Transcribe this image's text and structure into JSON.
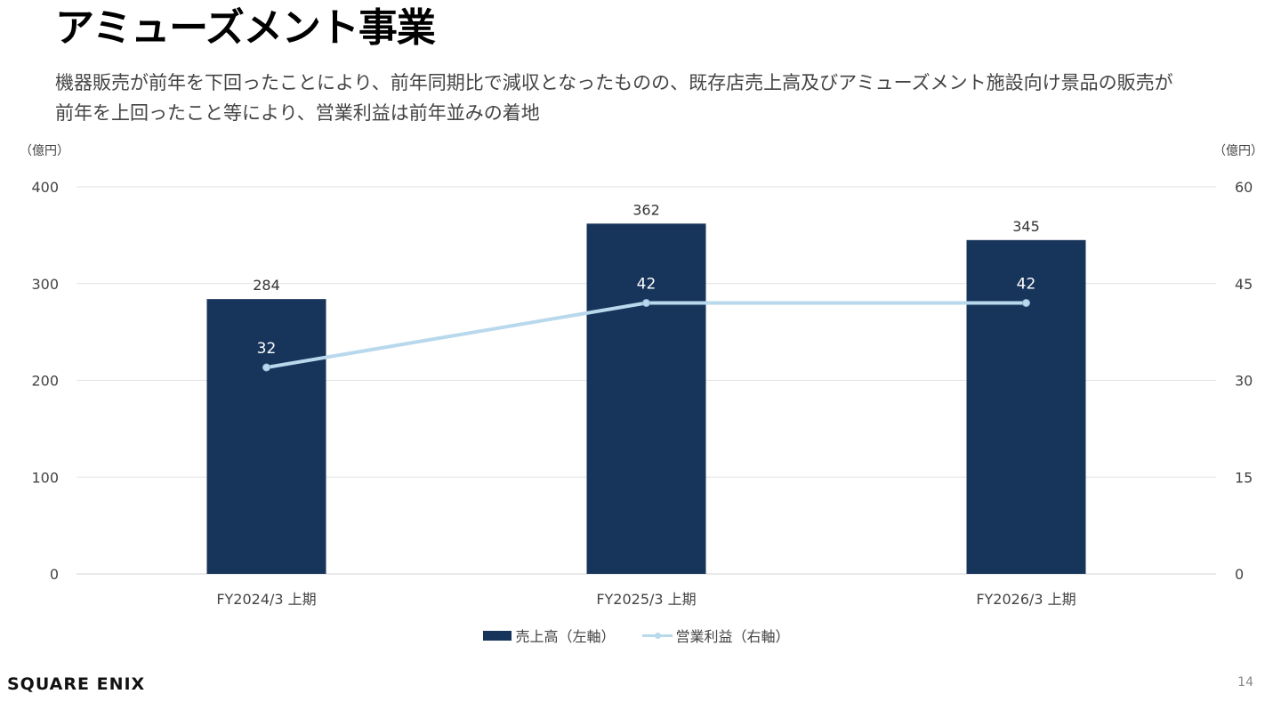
{
  "page": {
    "title": "アミューズメント事業",
    "description_lines": [
      "機器販売が前年を下回ったことにより、前年同期比で減収となったものの、既存店売上高及びアミューズメント施設向け景品の販売が",
      "前年を上回ったこと等により、営業利益は前年並みの着地"
    ],
    "logo_text": "SQUARE ENIX",
    "page_number": "14"
  },
  "chart_data": {
    "type": "bar",
    "categories": [
      "FY2024/3 上期",
      "FY2025/3 上期",
      "FY2026/3 上期"
    ],
    "series": [
      {
        "name": "売上高（左軸）",
        "type": "bar",
        "axis": "left",
        "values": [
          284,
          362,
          345
        ],
        "color": "#17345A"
      },
      {
        "name": "営業利益（右軸）",
        "type": "line",
        "axis": "right",
        "values": [
          32,
          42,
          42
        ],
        "color": "#B8D8EC"
      }
    ],
    "y_left": {
      "unit_label": "（億円）",
      "range": [
        0,
        400
      ],
      "ticks": [
        0,
        100,
        200,
        300,
        400
      ]
    },
    "y_right": {
      "unit_label": "（億円）",
      "range": [
        0,
        60
      ],
      "ticks": [
        0,
        15,
        30,
        45,
        60
      ]
    },
    "grid": true,
    "legend_position": "bottom"
  }
}
